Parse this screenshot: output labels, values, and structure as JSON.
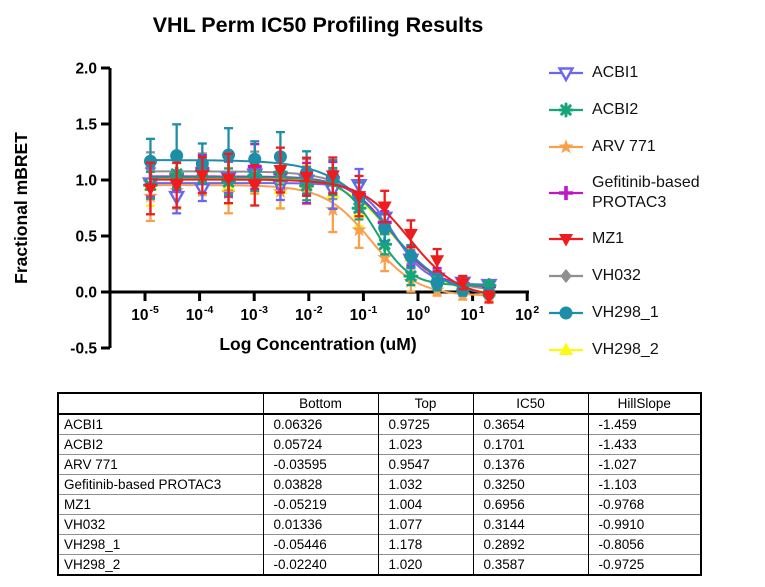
{
  "chart_data": {
    "type": "scatter",
    "title": "VHL Perm IC50 Profiling Results",
    "xlabel": "Log Concentration (uM)",
    "ylabel": "Fractional mBRET",
    "x_scale": "log10",
    "x_tick_exponents": [
      -5,
      -4,
      -3,
      -2,
      -1,
      0,
      1,
      2
    ],
    "y_ticks": [
      "2.0",
      "1.5",
      "1.0",
      "0.5",
      "0.0",
      "-0.5"
    ],
    "ylim": [
      -0.5,
      2.0
    ],
    "xlim_log10": [
      -5.65,
      2.0
    ],
    "legend_position": "right",
    "grid": false,
    "x_log10": [
      -4.9,
      -4.42,
      -3.95,
      -3.47,
      -2.99,
      -2.52,
      -2.04,
      -1.56,
      -1.08,
      -0.61,
      -0.13,
      0.35,
      0.82,
      1.3
    ],
    "series": [
      {
        "name": "ACBI1",
        "color": "#6a68ee",
        "marker": "triangle-down-open",
        "fit": {
          "bottom": 0.06326,
          "top": 0.9725,
          "ic50": 0.3654,
          "hillslope": -1.459
        },
        "jitter": [
          0.0,
          -0.12,
          -0.05,
          0.05,
          0.08,
          -0.02,
          0.03,
          -0.04,
          0.08,
          0.02,
          -0.01,
          0.0,
          0.01,
          0.0
        ],
        "err": [
          0.13,
          0.15,
          0.11,
          0.14,
          0.1,
          0.13,
          0.12,
          0.17,
          0.14,
          0.1,
          0.08,
          0.07,
          0.05,
          0.04
        ]
      },
      {
        "name": "ACBI2",
        "color": "#16a478",
        "marker": "asterisk",
        "fit": {
          "bottom": 0.05724,
          "top": 1.023,
          "ic50": 0.1701,
          "hillslope": -1.433
        },
        "jitter": [
          -0.07,
          0.03,
          0.06,
          -0.04,
          0.02,
          0.05,
          -0.06,
          0.03,
          -0.02,
          0.01,
          -0.02,
          0.01,
          0.0,
          0.0
        ],
        "err": [
          0.12,
          0.13,
          0.1,
          0.12,
          0.14,
          0.11,
          0.13,
          0.12,
          0.1,
          0.09,
          0.08,
          0.06,
          0.04,
          0.03
        ]
      },
      {
        "name": "ARV 771",
        "color": "#f9a04c",
        "marker": "star",
        "fit": {
          "bottom": -0.03595,
          "top": 0.9547,
          "ic50": 0.1376,
          "hillslope": -1.027
        },
        "jitter": [
          -0.1,
          -0.05,
          0.04,
          -0.07,
          0.05,
          -0.04,
          0.02,
          -0.06,
          -0.03,
          -0.01,
          -0.02,
          0.0,
          -0.01,
          -0.02
        ],
        "err": [
          0.22,
          0.16,
          0.13,
          0.18,
          0.12,
          0.15,
          0.13,
          0.2,
          0.16,
          0.12,
          0.09,
          0.05,
          0.04,
          0.03
        ]
      },
      {
        "name": "Gefitinib-based PROTAC3",
        "color": "#be18c8",
        "marker": "plus",
        "fit": {
          "bottom": 0.03828,
          "top": 1.032,
          "ic50": 0.325,
          "hillslope": -1.103
        },
        "jitter": [
          -0.03,
          0.02,
          0.07,
          -0.02,
          0.09,
          0.03,
          -0.04,
          0.05,
          0.02,
          0.01,
          0.0,
          0.01,
          0.0,
          0.0
        ],
        "err": [
          0.15,
          0.14,
          0.12,
          0.16,
          0.2,
          0.13,
          0.18,
          0.14,
          0.12,
          0.1,
          0.09,
          0.06,
          0.05,
          0.04
        ]
      },
      {
        "name": "MZ1",
        "color": "#ee1c1c",
        "marker": "triangle-down",
        "fit": {
          "bottom": -0.05219,
          "top": 1.004,
          "ic50": 0.6956,
          "hillslope": -0.9768
        },
        "jitter": [
          -0.08,
          -0.05,
          0.04,
          0.01,
          -0.05,
          0.09,
          0.04,
          0.08,
          -0.03,
          0.04,
          0.06,
          0.08,
          0.03,
          -0.03
        ],
        "err": [
          0.23,
          0.2,
          0.16,
          0.22,
          0.18,
          0.2,
          0.17,
          0.16,
          0.18,
          0.14,
          0.12,
          0.1,
          0.06,
          0.05
        ]
      },
      {
        "name": "VH032",
        "color": "#8f8f8f",
        "marker": "diamond",
        "fit": {
          "bottom": 0.01336,
          "top": 1.077,
          "ic50": 0.3144,
          "hillslope": -0.991
        },
        "jitter": [
          0.03,
          -0.02,
          0.05,
          -0.04,
          0.03,
          0.01,
          0.04,
          -0.03,
          0.02,
          0.01,
          0.0,
          -0.02,
          -0.01,
          0.0
        ],
        "err": [
          0.14,
          0.12,
          0.11,
          0.13,
          0.15,
          0.12,
          0.1,
          0.13,
          0.11,
          0.1,
          0.08,
          0.06,
          0.05,
          0.03
        ]
      },
      {
        "name": "VH298_1",
        "color": "#1e8da8",
        "marker": "circle",
        "fit": {
          "bottom": -0.05446,
          "top": 1.178,
          "ic50": 0.2892,
          "hillslope": -0.8056
        },
        "jitter": [
          -0.01,
          0.04,
          -0.03,
          0.05,
          0.02,
          0.06,
          -0.04,
          0.01,
          0.0,
          -0.03,
          -0.02,
          -0.06,
          -0.02,
          0.0
        ],
        "err": [
          0.2,
          0.28,
          0.18,
          0.24,
          0.16,
          0.22,
          0.19,
          0.15,
          0.13,
          0.12,
          0.1,
          0.07,
          0.05,
          0.04
        ]
      },
      {
        "name": "VH298_2",
        "color": "#fafa12",
        "marker": "triangle-up",
        "fit": {
          "bottom": -0.0224,
          "top": 1.02,
          "ic50": 0.3587,
          "hillslope": -0.9725
        },
        "jitter": [
          -0.07,
          -0.02,
          0.04,
          -0.07,
          0.01,
          -0.09,
          0.03,
          -0.06,
          -0.11,
          -0.04,
          -0.01,
          -0.02,
          0.0,
          0.0
        ],
        "err": [
          0.18,
          0.15,
          0.12,
          0.16,
          0.13,
          0.17,
          0.12,
          0.14,
          0.12,
          0.1,
          0.08,
          0.06,
          0.04,
          0.03
        ]
      }
    ]
  },
  "table": {
    "headers": [
      "",
      "Bottom",
      "Top",
      "IC50",
      "HillSlope"
    ],
    "rows": [
      {
        "name": "ACBI1",
        "bottom": "0.06326",
        "top": "0.9725",
        "ic50": "0.3654",
        "hillslope": "-1.459"
      },
      {
        "name": "ACBI2",
        "bottom": "0.05724",
        "top": "1.023",
        "ic50": "0.1701",
        "hillslope": "-1.433"
      },
      {
        "name": "ARV 771",
        "bottom": "-0.03595",
        "top": "0.9547",
        "ic50": "0.1376",
        "hillslope": "-1.027"
      },
      {
        "name": "Gefitinib-based PROTAC3",
        "bottom": "0.03828",
        "top": "1.032",
        "ic50": "0.3250",
        "hillslope": "-1.103"
      },
      {
        "name": "MZ1",
        "bottom": "-0.05219",
        "top": "1.004",
        "ic50": "0.6956",
        "hillslope": "-0.9768"
      },
      {
        "name": "VH032",
        "bottom": "0.01336",
        "top": "1.077",
        "ic50": "0.3144",
        "hillslope": "-0.9910"
      },
      {
        "name": "VH298_1",
        "bottom": "-0.05446",
        "top": "1.178",
        "ic50": "0.2892",
        "hillslope": "-0.8056"
      },
      {
        "name": "VH298_2",
        "bottom": "-0.02240",
        "top": "1.020",
        "ic50": "0.3587",
        "hillslope": "-0.9725"
      }
    ]
  }
}
